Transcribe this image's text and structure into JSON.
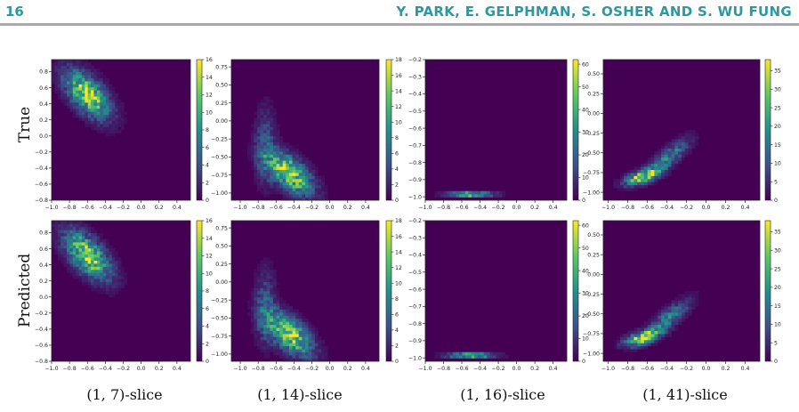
{
  "header": {
    "page_number": "16",
    "authors": "Y. PARK, E. GELPHMAN, S. OSHER AND S. WU FUNG"
  },
  "row_labels": [
    "True",
    "Predicted"
  ],
  "col_labels": [
    "(1, 7)-slice",
    "(1, 14)-slice",
    "(1, 16)-slice",
    "(1, 41)-slice"
  ],
  "colormap": [
    "#440154",
    "#3b528b",
    "#21918c",
    "#5ec962",
    "#fde725"
  ],
  "chart_data": [
    {
      "type": "heatmap",
      "row": "True",
      "slice": "(1, 7)-slice",
      "xlim": [
        -1.0,
        0.55
      ],
      "ylim": [
        -0.8,
        0.95
      ],
      "xticks": [
        "−1.0",
        "−0.8",
        "−0.6",
        "−0.4",
        "−0.2",
        "0.0",
        "0.2",
        "0.4"
      ],
      "yticks": [
        "0.8",
        "0.6",
        "0.4",
        "0.2",
        "0.0",
        "−0.2",
        "−0.4",
        "−0.6",
        "−0.8"
      ],
      "colorbar_range": [
        0,
        16
      ],
      "colorbar_ticks": [
        "16",
        "14",
        "12",
        "10",
        "8",
        "6",
        "4",
        "2",
        "0"
      ]
    },
    {
      "type": "heatmap",
      "row": "True",
      "slice": "(1, 14)-slice",
      "xlim": [
        -1.1,
        0.55
      ],
      "ylim": [
        -1.1,
        0.85
      ],
      "xticks": [
        "−1.0",
        "−0.8",
        "−0.6",
        "−0.4",
        "−0.2",
        "0.0",
        "0.2",
        "0.4"
      ],
      "yticks": [
        "0.75",
        "0.50",
        "0.25",
        "0.00",
        "−0.25",
        "−0.50",
        "−0.75",
        "−1.00"
      ],
      "colorbar_range": [
        0,
        18
      ],
      "colorbar_ticks": [
        "18",
        "16",
        "14",
        "12",
        "10",
        "8",
        "6",
        "4",
        "2",
        "0"
      ]
    },
    {
      "type": "heatmap",
      "row": "True",
      "slice": "(1, 16)-slice",
      "xlim": [
        -1.0,
        0.55
      ],
      "ylim": [
        -1.02,
        -0.2
      ],
      "xticks": [
        "−1.0",
        "−0.8",
        "−0.6",
        "−0.4",
        "−0.2",
        "0.0",
        "0.2",
        "0.4"
      ],
      "yticks": [
        "−0.2",
        "−0.3",
        "−0.4",
        "−0.5",
        "−0.6",
        "−0.7",
        "−0.8",
        "−0.9",
        "−1.0"
      ],
      "colorbar_range": [
        0,
        62
      ],
      "colorbar_ticks": [
        "60",
        "50",
        "40",
        "30",
        "20",
        "10",
        "0"
      ]
    },
    {
      "type": "heatmap",
      "row": "True",
      "slice": "(1, 41)-slice",
      "xlim": [
        -1.05,
        0.55
      ],
      "ylim": [
        -1.1,
        0.68
      ],
      "xticks": [
        "−1.0",
        "−0.8",
        "−0.6",
        "−0.4",
        "−0.2",
        "0.0",
        "0.2",
        "0.4"
      ],
      "yticks": [
        "0.50",
        "0.25",
        "0.00",
        "−0.25",
        "−0.50",
        "−0.75",
        "−1.00"
      ],
      "colorbar_range": [
        0,
        38
      ],
      "colorbar_ticks": [
        "35",
        "30",
        "25",
        "20",
        "15",
        "10",
        "5",
        "0"
      ]
    },
    {
      "type": "heatmap",
      "row": "Predicted",
      "slice": "(1, 7)-slice",
      "xlim": [
        -1.0,
        0.55
      ],
      "ylim": [
        -0.8,
        0.95
      ],
      "xticks": [
        "−1.0",
        "−0.8",
        "−0.6",
        "−0.4",
        "−0.2",
        "0.0",
        "0.2",
        "0.4"
      ],
      "yticks": [
        "0.8",
        "0.6",
        "0.4",
        "0.2",
        "0.0",
        "−0.2",
        "−0.4",
        "−0.6",
        "−0.8"
      ],
      "colorbar_range": [
        0,
        16
      ],
      "colorbar_ticks": [
        "16",
        "14",
        "12",
        "10",
        "8",
        "6",
        "4",
        "2",
        "0"
      ]
    },
    {
      "type": "heatmap",
      "row": "Predicted",
      "slice": "(1, 14)-slice",
      "xlim": [
        -1.1,
        0.55
      ],
      "ylim": [
        -1.1,
        0.85
      ],
      "xticks": [
        "−1.0",
        "−0.8",
        "−0.6",
        "−0.4",
        "−0.2",
        "0.0",
        "0.2",
        "0.4"
      ],
      "yticks": [
        "0.75",
        "0.50",
        "0.25",
        "0.00",
        "−0.25",
        "−0.50",
        "−0.75",
        "−1.00"
      ],
      "colorbar_range": [
        0,
        18
      ],
      "colorbar_ticks": [
        "18",
        "16",
        "14",
        "12",
        "10",
        "8",
        "6",
        "4",
        "2",
        "0"
      ]
    },
    {
      "type": "heatmap",
      "row": "Predicted",
      "slice": "(1, 16)-slice",
      "xlim": [
        -1.0,
        0.55
      ],
      "ylim": [
        -1.02,
        -0.2
      ],
      "xticks": [
        "−1.0",
        "−0.8",
        "−0.6",
        "−0.4",
        "−0.2",
        "0.0",
        "0.2",
        "0.4"
      ],
      "yticks": [
        "−0.2",
        "−0.3",
        "−0.4",
        "−0.5",
        "−0.6",
        "−0.7",
        "−0.8",
        "−0.9",
        "−1.0"
      ],
      "colorbar_range": [
        0,
        62
      ],
      "colorbar_ticks": [
        "60",
        "50",
        "40",
        "30",
        "20",
        "10",
        "0"
      ]
    },
    {
      "type": "heatmap",
      "row": "Predicted",
      "slice": "(1, 41)-slice",
      "xlim": [
        -1.05,
        0.55
      ],
      "ylim": [
        -1.1,
        0.68
      ],
      "xticks": [
        "−1.0",
        "−0.8",
        "−0.6",
        "−0.4",
        "−0.2",
        "0.0",
        "0.2",
        "0.4"
      ],
      "yticks": [
        "0.50",
        "0.25",
        "0.00",
        "−0.25",
        "−0.50",
        "−0.75",
        "−1.00"
      ],
      "colorbar_range": [
        0,
        38
      ],
      "colorbar_ticks": [
        "35",
        "30",
        "25",
        "20",
        "15",
        "10",
        "5",
        "0"
      ]
    }
  ]
}
